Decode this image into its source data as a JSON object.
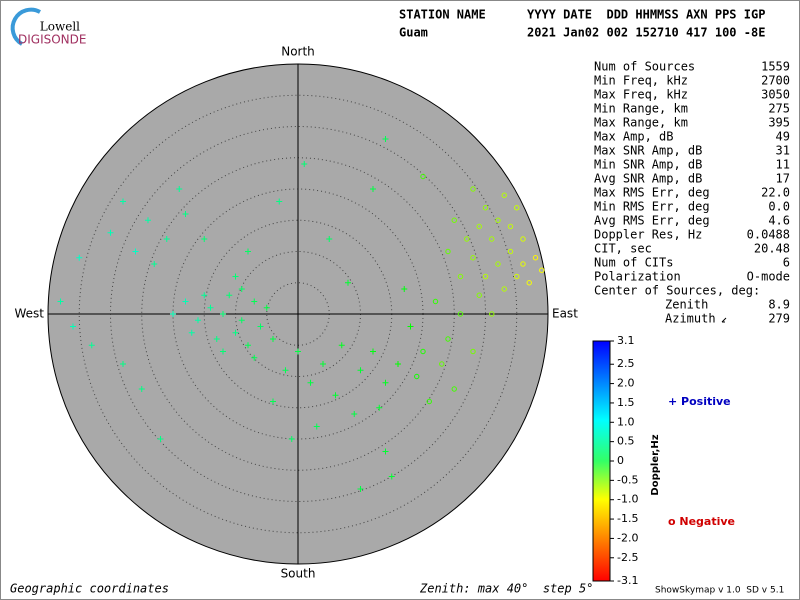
{
  "logo": {
    "top": "Lowell",
    "bottom": "DIGISONDE"
  },
  "header": {
    "station_label": "STATION NAME",
    "columns_label": "YYYY DATE  DDD HHMMSS AXN PPS IGP",
    "station": "Guam",
    "values": "2021 Jan02 002 152710 417 100 -8E"
  },
  "compass": {
    "north": "North",
    "south": "South",
    "east": "East",
    "west": "West"
  },
  "stats": [
    [
      "Num of Sources",
      "1559"
    ],
    [
      "Min Freq, kHz",
      "2700"
    ],
    [
      "Max Freq, kHz",
      "3050"
    ],
    [
      "Min Range, km",
      "275"
    ],
    [
      "Max Range, km",
      "395"
    ],
    [
      "Max Amp, dB",
      "49"
    ],
    [
      "Max SNR Amp, dB",
      "31"
    ],
    [
      "Min SNR Amp, dB",
      "11"
    ],
    [
      "Avg SNR Amp, dB",
      "17"
    ],
    [
      "Max RMS Err, deg",
      "22.0"
    ],
    [
      "Min RMS Err, deg",
      "0.0"
    ],
    [
      "Avg RMS Err, deg",
      "4.6"
    ],
    [
      "Doppler Res, Hz",
      "0.0488"
    ],
    [
      "CIT, sec",
      "20.48"
    ],
    [
      "Num of CITs",
      "6"
    ],
    [
      "Polarization",
      "O-mode"
    ]
  ],
  "center": {
    "title": "Center of Sources, deg:",
    "zenith_label": "Zenith",
    "zenith": "8.9",
    "azimuth_label": "Azimuth",
    "azimuth": "279"
  },
  "colorbar": {
    "title": "Doppler,Hz",
    "ticks": [
      "3.1",
      "2.5",
      "2.0",
      "1.5",
      "1.0",
      "0.5",
      "0",
      "-0.5",
      "-1.0",
      "-1.5",
      "-2.0",
      "-2.5",
      "-3.1"
    ]
  },
  "legend": {
    "positive": "+ Positive",
    "negative": "o Negative"
  },
  "footer": {
    "coords": "Geographic coordinates",
    "zenith": "Zenith: max 40°  step 5°",
    "version": "ShowSkymap v 1.0  SD v 5.1"
  },
  "sources": {
    "east": [
      -9,
      -12,
      -7,
      -10,
      -14,
      -6,
      -11,
      -8,
      -13,
      -16,
      -5,
      -9,
      -12,
      -15,
      -7,
      -18,
      -4,
      -10,
      -17,
      -20,
      -24,
      -21,
      -26,
      -18,
      -28,
      -23,
      -30,
      -15,
      -35,
      -19,
      -38,
      -33,
      -28,
      -25,
      -36,
      0,
      4,
      7,
      10,
      2,
      -2,
      12,
      6,
      14,
      9,
      -4,
      16,
      3,
      13,
      -1,
      18,
      20,
      22,
      17,
      24,
      19,
      26,
      23,
      28,
      14,
      21,
      25,
      32,
      30,
      34,
      28,
      35,
      31,
      33,
      29,
      36,
      27,
      32,
      37,
      30,
      25,
      34,
      38,
      26,
      33,
      28,
      36,
      31,
      24,
      35,
      29,
      39,
      5,
      -3,
      12,
      8,
      -22,
      15,
      10,
      20,
      -8,
      1,
      14
    ],
    "north": [
      -1,
      0,
      2,
      -3,
      1,
      -2,
      3,
      -5,
      -4,
      -1,
      1,
      4,
      -6,
      3,
      -7,
      2,
      -4,
      6,
      -3,
      0,
      15,
      12,
      10,
      16,
      18,
      8,
      13,
      12,
      9,
      20,
      2,
      -5,
      -8,
      -12,
      -2,
      -6,
      -8,
      -5,
      -9,
      -11,
      -9,
      -6,
      -13,
      -11,
      -16,
      -14,
      -8,
      -18,
      -15,
      -20,
      -2,
      -6,
      2,
      4,
      -4,
      -10,
      0,
      -8,
      -6,
      -22,
      -14,
      -12,
      8,
      6,
      10,
      9,
      6,
      12,
      4,
      3,
      8,
      12,
      15,
      5,
      17,
      15,
      14,
      9,
      6,
      19,
      20,
      12,
      0,
      10,
      17,
      14,
      7,
      12,
      18,
      20,
      5,
      -20,
      -26,
      -28,
      22,
      10,
      24,
      28
    ],
    "doppler": [
      0.6,
      0.7,
      0.5,
      0.8,
      0.9,
      0.6,
      0.7,
      0.5,
      0.8,
      1.0,
      0.4,
      0.6,
      0.7,
      0.9,
      0.5,
      1.1,
      0.4,
      0.7,
      1.0,
      1.1,
      1.0,
      0.9,
      1.2,
      0.8,
      1.0,
      0.9,
      1.1,
      0.7,
      1.2,
      0.9,
      1.0,
      0.9,
      0.8,
      0.8,
      1.1,
      0.4,
      0.3,
      0.2,
      0.3,
      0.4,
      0.5,
      0.1,
      0.3,
      0.2,
      0.4,
      0.5,
      0.0,
      0.5,
      0.3,
      0.6,
      0.0,
      -0.2,
      -0.3,
      0.1,
      -0.4,
      -0.1,
      -0.5,
      -0.6,
      -0.7,
      0.3,
      -0.3,
      -0.4,
      -1.0,
      -1.1,
      -1.2,
      -0.9,
      -1.3,
      -1.0,
      -1.1,
      -0.8,
      -1.4,
      -0.9,
      -1.0,
      -1.5,
      -0.9,
      -0.7,
      -1.2,
      -1.6,
      -0.8,
      -1.1,
      -0.8,
      -1.3,
      -0.9,
      -0.6,
      -1.2,
      -1.0,
      -1.5,
      0.6,
      0.8,
      0.4,
      0.3,
      0.8,
      0.3,
      0.4,
      -0.4,
      0.6,
      0.7,
      0.5
    ]
  }
}
